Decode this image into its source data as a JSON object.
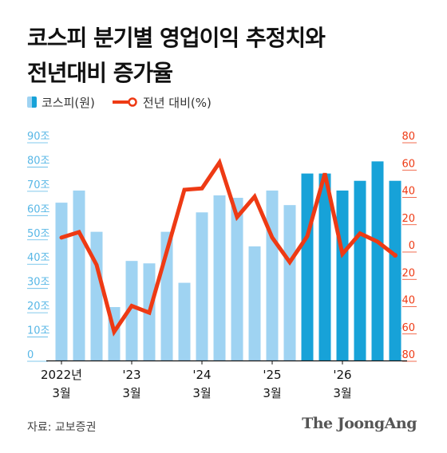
{
  "title": {
    "line1": "코스피 분기별 영업이익 추정치와",
    "line2": "전년대비 증가율"
  },
  "legend": {
    "bar_label": "코스피(원)",
    "line_label": "전년 대비(%)"
  },
  "source": "자료: 교보증권",
  "logo": "The JoongAng",
  "chart_data": {
    "type": "bar+line",
    "categories": [
      "2022Q1",
      "2022Q2",
      "2022Q3",
      "2022Q4",
      "2023Q1",
      "2023Q2",
      "2023Q3",
      "2023Q4",
      "2024Q1",
      "2024Q2",
      "2024Q3",
      "2024Q4",
      "2025Q1",
      "2025Q2",
      "2025Q3",
      "2025Q4",
      "2026Q1",
      "2026Q2",
      "2026Q3",
      "2026Q4"
    ],
    "x_tick_labels": [
      {
        "index": 0,
        "line1": "2022년",
        "line2": "3월"
      },
      {
        "index": 4,
        "line1": "'23",
        "line2": "3월"
      },
      {
        "index": 8,
        "line1": "'24",
        "line2": "3월"
      },
      {
        "index": 12,
        "line1": "'25",
        "line2": "3월"
      },
      {
        "index": 16,
        "line1": "'26",
        "line2": "3월"
      }
    ],
    "series": [
      {
        "name": "코스피(원)",
        "type": "bar",
        "axis": "left",
        "values": [
          65,
          70,
          53,
          22,
          41,
          40,
          53,
          32,
          61,
          68,
          67,
          47,
          70,
          64,
          77,
          77,
          70,
          74,
          82,
          74
        ],
        "color": "#9fd3f2",
        "estimate_color": "#17a2d8",
        "estimate_from_index": 14
      },
      {
        "name": "전년 대비(%)",
        "type": "line",
        "axis": "right",
        "values": [
          10,
          14,
          -10,
          -59,
          -40,
          -45,
          0,
          45,
          46,
          65,
          25,
          40,
          10,
          -8,
          11,
          57,
          -2,
          13,
          7,
          -3
        ],
        "color": "#ee3a14"
      }
    ],
    "y_left": {
      "min": 0,
      "max": 90,
      "ticks": [
        0,
        10,
        20,
        30,
        40,
        50,
        60,
        70,
        80,
        90
      ],
      "tick_labels": [
        "0",
        "10조",
        "20조",
        "30조",
        "40조",
        "50조",
        "60조",
        "70조",
        "80조",
        "90조"
      ],
      "color": "#58b7e6"
    },
    "y_right": {
      "min": -80,
      "max": 80,
      "ticks": [
        -80,
        -60,
        -40,
        -20,
        0,
        20,
        40,
        60,
        80
      ],
      "tick_labels": [
        "-80",
        "-60",
        "-40",
        "-20",
        "0",
        "20",
        "40",
        "60",
        "80"
      ],
      "color": "#ee3a14"
    },
    "grid": false
  }
}
